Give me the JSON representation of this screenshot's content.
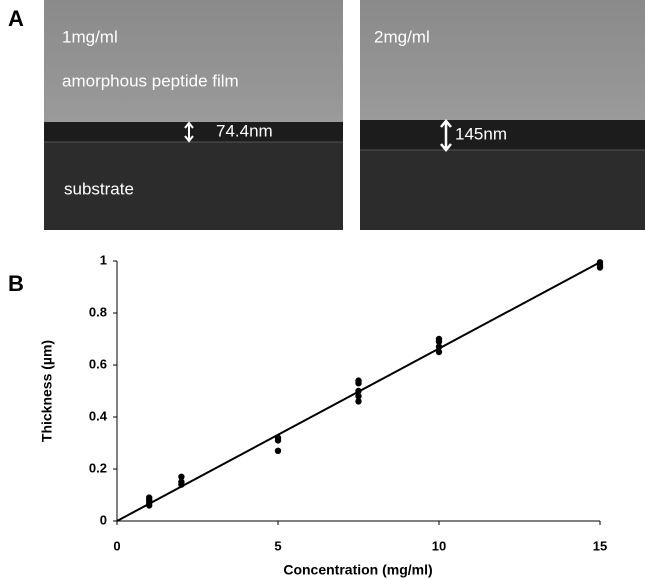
{
  "panel_a": {
    "label": "A",
    "left": {
      "concentration": "1mg/ml",
      "film": "amorphous peptide film",
      "thickness": "74.4nm",
      "substrate": "substrate"
    },
    "right": {
      "concentration": "2mg/ml",
      "thickness": "145nm"
    }
  },
  "chart_data": {
    "type": "scatter",
    "panel": "B",
    "xlabel": "Concentration (mg/ml)",
    "ylabel": "Thickness (µm)",
    "x": [
      1,
      1,
      1,
      1,
      2,
      2,
      2,
      5,
      5,
      5,
      7.5,
      7.5,
      7.5,
      7.5,
      7.5,
      10,
      10,
      10,
      10,
      15,
      15,
      15
    ],
    "y": [
      0.06,
      0.07,
      0.08,
      0.09,
      0.14,
      0.15,
      0.17,
      0.27,
      0.31,
      0.32,
      0.46,
      0.48,
      0.5,
      0.53,
      0.54,
      0.65,
      0.67,
      0.69,
      0.7,
      0.975,
      0.985,
      0.995
    ],
    "color": "#000000",
    "fit": {
      "x": [
        0,
        15
      ],
      "y": [
        0,
        0.995
      ]
    },
    "xlim": [
      0,
      15
    ],
    "ylim": [
      0,
      1
    ],
    "xticks": [
      0,
      5,
      10,
      15
    ],
    "yticks": [
      0,
      0.2,
      0.4,
      0.6,
      0.8,
      1
    ]
  }
}
